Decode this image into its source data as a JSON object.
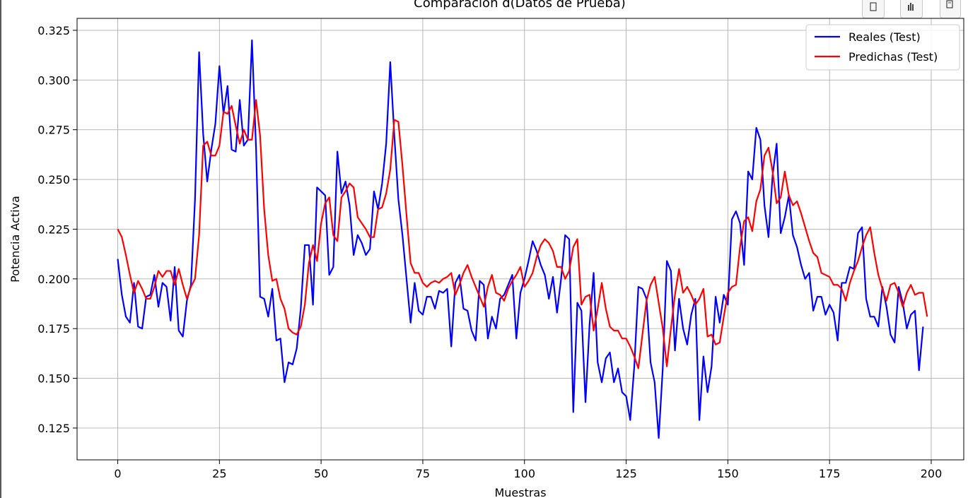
{
  "chart_data": {
    "type": "line",
    "title": "Comparación d(Datos de Prueba)",
    "xlabel": "Muestras",
    "ylabel": "Potencia Activa",
    "xlim": [
      -10,
      208
    ],
    "ylim": [
      0.109,
      0.331
    ],
    "xticks": [
      0,
      25,
      50,
      75,
      100,
      125,
      150,
      175,
      200
    ],
    "yticks": [
      0.125,
      0.15,
      0.175,
      0.2,
      0.225,
      0.25,
      0.275,
      0.3,
      0.325
    ],
    "ytick_labels": [
      "0.125",
      "0.150",
      "0.175",
      "0.200",
      "0.225",
      "0.250",
      "0.275",
      "0.300",
      "0.325"
    ],
    "grid": true,
    "legend": "top-right",
    "series": [
      {
        "name": "Reales (Test)",
        "color": "#0000ff",
        "values": [
          0.21,
          0.192,
          0.181,
          0.178,
          0.198,
          0.176,
          0.175,
          0.191,
          0.192,
          0.202,
          0.186,
          0.198,
          0.196,
          0.179,
          0.206,
          0.174,
          0.171,
          0.189,
          0.197,
          0.24,
          0.314,
          0.273,
          0.249,
          0.265,
          0.278,
          0.307,
          0.283,
          0.297,
          0.265,
          0.264,
          0.29,
          0.267,
          0.27,
          0.32,
          0.266,
          0.191,
          0.19,
          0.181,
          0.195,
          0.169,
          0.17,
          0.148,
          0.158,
          0.157,
          0.165,
          0.185,
          0.217,
          0.217,
          0.187,
          0.246,
          0.244,
          0.242,
          0.202,
          0.206,
          0.264,
          0.243,
          0.249,
          0.237,
          0.212,
          0.222,
          0.218,
          0.212,
          0.215,
          0.244,
          0.235,
          0.248,
          0.268,
          0.309,
          0.272,
          0.24,
          0.222,
          0.2,
          0.178,
          0.198,
          0.184,
          0.182,
          0.191,
          0.191,
          0.185,
          0.194,
          0.193,
          0.195,
          0.166,
          0.198,
          0.202,
          0.185,
          0.184,
          0.174,
          0.169,
          0.199,
          0.197,
          0.17,
          0.181,
          0.175,
          0.19,
          0.192,
          0.197,
          0.202,
          0.17,
          0.193,
          0.2,
          0.209,
          0.219,
          0.214,
          0.207,
          0.202,
          0.19,
          0.201,
          0.183,
          0.2,
          0.222,
          0.22,
          0.133,
          0.188,
          0.184,
          0.138,
          0.177,
          0.203,
          0.158,
          0.148,
          0.16,
          0.163,
          0.148,
          0.155,
          0.143,
          0.141,
          0.129,
          0.156,
          0.196,
          0.195,
          0.19,
          0.158,
          0.148,
          0.12,
          0.155,
          0.209,
          0.204,
          0.164,
          0.19,
          0.175,
          0.167,
          0.182,
          0.19,
          0.129,
          0.161,
          0.143,
          0.156,
          0.191,
          0.178,
          0.192,
          0.187,
          0.23,
          0.234,
          0.228,
          0.207,
          0.254,
          0.25,
          0.276,
          0.27,
          0.237,
          0.221,
          0.252,
          0.268,
          0.223,
          0.231,
          0.242,
          0.222,
          0.216,
          0.207,
          0.2,
          0.203,
          0.184,
          0.191,
          0.191,
          0.182,
          0.187,
          0.183,
          0.169,
          0.198,
          0.198,
          0.206,
          0.205,
          0.223,
          0.226,
          0.19,
          0.181,
          0.181,
          0.176,
          0.196,
          0.186,
          0.172,
          0.168,
          0.196,
          0.188,
          0.175,
          0.182,
          0.184,
          0.154,
          0.176
        ]
      },
      {
        "name": "Predichas (Test)",
        "color": "#ff0000",
        "values": [
          0.225,
          0.221,
          0.212,
          0.202,
          0.193,
          0.199,
          0.195,
          0.19,
          0.19,
          0.196,
          0.204,
          0.201,
          0.204,
          0.204,
          0.197,
          0.205,
          0.197,
          0.19,
          0.196,
          0.2,
          0.222,
          0.267,
          0.269,
          0.262,
          0.262,
          0.267,
          0.284,
          0.283,
          0.287,
          0.277,
          0.268,
          0.275,
          0.27,
          0.27,
          0.29,
          0.272,
          0.235,
          0.212,
          0.199,
          0.2,
          0.19,
          0.185,
          0.175,
          0.173,
          0.172,
          0.176,
          0.187,
          0.208,
          0.217,
          0.209,
          0.228,
          0.238,
          0.241,
          0.222,
          0.219,
          0.241,
          0.244,
          0.248,
          0.246,
          0.231,
          0.228,
          0.225,
          0.221,
          0.221,
          0.235,
          0.236,
          0.243,
          0.255,
          0.28,
          0.279,
          0.257,
          0.232,
          0.208,
          0.203,
          0.203,
          0.198,
          0.196,
          0.198,
          0.199,
          0.198,
          0.2,
          0.201,
          0.203,
          0.192,
          0.197,
          0.203,
          0.207,
          0.201,
          0.196,
          0.191,
          0.186,
          0.196,
          0.202,
          0.193,
          0.192,
          0.189,
          0.195,
          0.199,
          0.202,
          0.206,
          0.196,
          0.199,
          0.203,
          0.211,
          0.217,
          0.22,
          0.218,
          0.214,
          0.206,
          0.206,
          0.2,
          0.204,
          0.216,
          0.22,
          0.187,
          0.191,
          0.192,
          0.174,
          0.185,
          0.198,
          0.185,
          0.176,
          0.174,
          0.174,
          0.17,
          0.17,
          0.166,
          0.161,
          0.155,
          0.172,
          0.189,
          0.197,
          0.201,
          0.188,
          0.175,
          0.156,
          0.175,
          0.192,
          0.205,
          0.193,
          0.196,
          0.192,
          0.187,
          0.19,
          0.195,
          0.171,
          0.172,
          0.167,
          0.168,
          0.181,
          0.193,
          0.196,
          0.197,
          0.216,
          0.229,
          0.231,
          0.224,
          0.239,
          0.245,
          0.262,
          0.266,
          0.254,
          0.238,
          0.241,
          0.254,
          0.242,
          0.237,
          0.239,
          0.233,
          0.226,
          0.219,
          0.213,
          0.211,
          0.203,
          0.202,
          0.201,
          0.197,
          0.197,
          0.195,
          0.189,
          0.198,
          0.204,
          0.209,
          0.216,
          0.222,
          0.226,
          0.213,
          0.202,
          0.195,
          0.189,
          0.197,
          0.198,
          0.193,
          0.186,
          0.193,
          0.197,
          0.192,
          0.193,
          0.193,
          0.181
        ]
      }
    ]
  },
  "toolbar": {
    "icons": [
      "copy-icon",
      "chart-icon",
      "expand-icon"
    ]
  }
}
